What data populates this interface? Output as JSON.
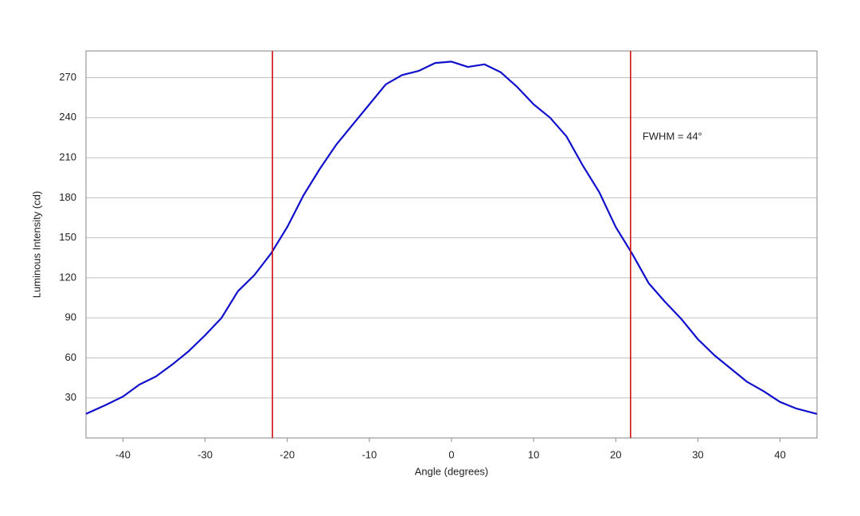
{
  "chart_data": {
    "type": "line",
    "x_label": "Angle (degrees)",
    "y_label": "Luminous Intensity (cd)",
    "annotation": "FWHM = 44°",
    "x": [
      -44.5,
      -42,
      -40,
      -38,
      -36,
      -34,
      -32,
      -30,
      -28,
      -26,
      -24,
      -22,
      -20,
      -18,
      -16,
      -14,
      -12,
      -10,
      -8,
      -6,
      -4,
      -2,
      0,
      2,
      4,
      6,
      8,
      10,
      12,
      14,
      16,
      18,
      20,
      22,
      24,
      26,
      28,
      30,
      32,
      34,
      36,
      38,
      40,
      42,
      44.5
    ],
    "series": [
      {
        "color": "#1010cc",
        "values": [
          18,
          25,
          31,
          40,
          46,
          55,
          65,
          77,
          90,
          110,
          122,
          138,
          158,
          182,
          202,
          220,
          235,
          250,
          265,
          272,
          275,
          281,
          282,
          278,
          280,
          274,
          263,
          250,
          240,
          226,
          204,
          184,
          158,
          138,
          116,
          102,
          89,
          74,
          62,
          52,
          42,
          35,
          27,
          22,
          18
        ]
      }
    ],
    "reference_lines": [
      {
        "x": -21.8,
        "color": "#cc1111"
      },
      {
        "x": 21.8,
        "color": "#cc1111"
      }
    ],
    "xlim": [
      -44.5,
      44.5
    ],
    "ylim": [
      0,
      290
    ],
    "xticks": [
      -40,
      -30,
      -20,
      -10,
      0,
      10,
      20,
      30,
      40
    ],
    "yticks": [
      30,
      60,
      90,
      120,
      150,
      180,
      210,
      240,
      270
    ],
    "grid": true
  }
}
